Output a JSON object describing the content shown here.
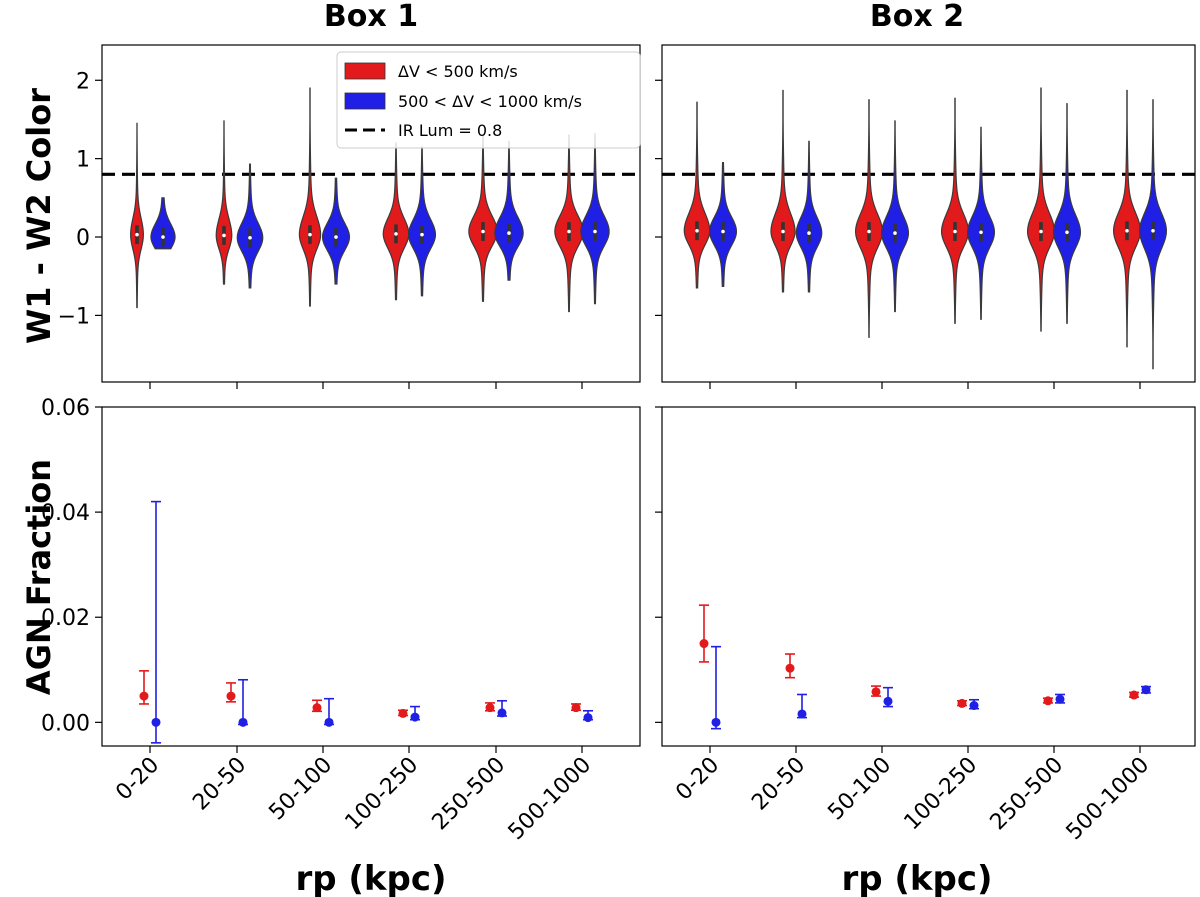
{
  "chart_data": {
    "type": "violin+errorbar",
    "panel_titles": [
      "Box 1",
      "Box 2"
    ],
    "categories": [
      "0-20",
      "20-50",
      "50-100",
      "100-250",
      "250-500",
      "500-1000"
    ],
    "xlabel": "rp (kpc)",
    "colors": {
      "red": "#e31a1c",
      "blue": "#1f1fe6"
    },
    "top": {
      "ylabel": "W1 - W2 Color",
      "ylim": [
        -1.85,
        2.45
      ],
      "yticks": [
        -1,
        0,
        1,
        2
      ],
      "ytick_labels": [
        "−1",
        "0",
        "1",
        "2"
      ],
      "reference_line": {
        "label": "IR Lum = 0.8",
        "value": 0.8
      },
      "legend": {
        "position": "top-right",
        "entries": [
          "ΔV < 500 km/s",
          "500 < ΔV < 1000 km/s",
          "IR Lum = 0.8"
        ]
      },
      "series": [
        {
          "name": "ΔV < 500 km/s",
          "color": "#e31a1c",
          "box1": {
            "min": [
              -0.9,
              -0.6,
              -0.88,
              -0.8,
              -0.82,
              -0.95
            ],
            "max": [
              1.45,
              1.48,
              1.9,
              1.2,
              1.3,
              1.3
            ],
            "median": [
              0.03,
              0.02,
              0.03,
              0.04,
              0.07,
              0.07
            ],
            "width": [
              0.45,
              0.55,
              0.75,
              0.9,
              1.0,
              1.0
            ]
          },
          "box2": {
            "min": [
              -0.65,
              -0.7,
              -1.28,
              -1.1,
              -1.2,
              -1.4
            ],
            "max": [
              1.72,
              1.87,
              1.75,
              1.77,
              1.9,
              1.87
            ],
            "median": [
              0.08,
              0.07,
              0.07,
              0.07,
              0.07,
              0.08
            ],
            "width": [
              0.9,
              0.85,
              0.95,
              0.95,
              0.95,
              0.95
            ]
          }
        },
        {
          "name": "500 < ΔV < 1000 km/s",
          "color": "#1f1fe6",
          "box1": {
            "min": [
              -0.15,
              -0.65,
              -0.6,
              -0.75,
              -0.55,
              -0.85
            ],
            "max": [
              0.5,
              0.93,
              0.75,
              1.15,
              1.22,
              1.32
            ],
            "median": [
              0.0,
              -0.01,
              0.0,
              0.03,
              0.05,
              0.07
            ],
            "width": [
              0.85,
              0.9,
              0.95,
              0.95,
              1.0,
              1.0
            ]
          },
          "box2": {
            "min": [
              -0.63,
              -0.7,
              -0.95,
              -1.05,
              -1.1,
              -1.68
            ],
            "max": [
              0.95,
              1.22,
              1.48,
              1.4,
              1.7,
              1.75
            ],
            "median": [
              0.07,
              0.05,
              0.05,
              0.06,
              0.06,
              0.08
            ],
            "width": [
              0.95,
              0.9,
              0.95,
              0.95,
              0.95,
              0.95
            ]
          }
        }
      ]
    },
    "bottom": {
      "ylabel": "AGN Fraction",
      "ylim": [
        -0.0045,
        0.06
      ],
      "yticks": [
        0.0,
        0.02,
        0.04,
        0.06
      ],
      "ytick_labels": [
        "0.00",
        "0.02",
        "0.04",
        "0.06"
      ],
      "series": [
        {
          "name": "ΔV < 500 km/s",
          "color": "#e31a1c",
          "box1": {
            "value": [
              0.005,
              0.005,
              0.0028,
              0.0017,
              0.0028,
              0.0028
            ],
            "lower": [
              0.0035,
              0.0039,
              0.0021,
              0.0013,
              0.0022,
              0.0023
            ],
            "upper": [
              0.0098,
              0.0075,
              0.0042,
              0.0023,
              0.0037,
              0.0035
            ]
          },
          "box2": {
            "value": [
              0.015,
              0.0103,
              0.0058,
              0.0036,
              0.0041,
              0.0052
            ],
            "lower": [
              0.0115,
              0.0085,
              0.005,
              0.0032,
              0.0037,
              0.0048
            ],
            "upper": [
              0.0223,
              0.013,
              0.0069,
              0.0041,
              0.0046,
              0.0057
            ]
          }
        },
        {
          "name": "500 < ΔV < 1000 km/s",
          "color": "#1f1fe6",
          "box1": {
            "value": [
              0.0,
              0.0,
              0.0,
              0.001,
              0.0018,
              0.0009
            ],
            "lower": [
              -0.0039,
              -0.0004,
              -0.0004,
              0.0005,
              0.0012,
              0.0005
            ],
            "upper": [
              0.042,
              0.0081,
              0.0045,
              0.003,
              0.0041,
              0.0022
            ]
          },
          "box2": {
            "value": [
              0.0,
              0.0016,
              0.004,
              0.0032,
              0.0044,
              0.0062
            ],
            "lower": [
              -0.0012,
              0.0009,
              0.003,
              0.0026,
              0.0037,
              0.0056
            ],
            "upper": [
              0.0144,
              0.0053,
              0.0066,
              0.0043,
              0.0053,
              0.0068
            ]
          }
        }
      ]
    }
  }
}
